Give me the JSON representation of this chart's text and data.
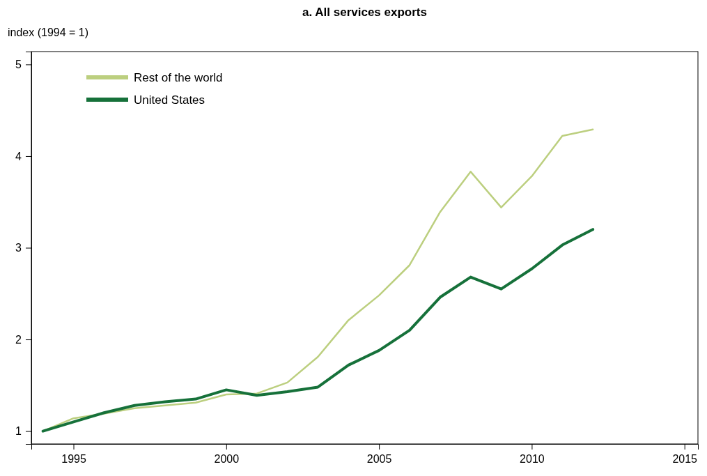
{
  "chart_data": {
    "type": "line",
    "title": "a. All services exports",
    "ylabel": "index (1994 = 1)",
    "x": [
      1994,
      1995,
      1996,
      1997,
      1998,
      1999,
      2000,
      2001,
      2002,
      2003,
      2004,
      2005,
      2006,
      2007,
      2008,
      2009,
      2010,
      2011,
      2012
    ],
    "series": [
      {
        "name": "Rest of the world",
        "color": "#bccf7f",
        "values": [
          1.0,
          1.14,
          1.19,
          1.25,
          1.28,
          1.31,
          1.4,
          1.41,
          1.53,
          1.81,
          2.21,
          2.48,
          2.81,
          3.39,
          3.83,
          3.44,
          3.78,
          4.22,
          4.29
        ]
      },
      {
        "name": "United States",
        "color": "#16713a",
        "values": [
          1.0,
          1.1,
          1.2,
          1.28,
          1.32,
          1.35,
          1.45,
          1.39,
          1.43,
          1.48,
          1.72,
          1.88,
          2.1,
          2.46,
          2.68,
          2.55,
          2.77,
          3.03,
          3.2
        ]
      }
    ],
    "xlim": [
      1993.62,
      2015.44
    ],
    "xticks": [
      1995,
      2000,
      2005,
      2010,
      2015
    ],
    "ylim": [
      0.86,
      5.14
    ],
    "yticks": [
      1,
      2,
      3,
      4,
      5
    ],
    "grid": false,
    "legend": "top left",
    "marker": "none",
    "line_style": "solid"
  }
}
